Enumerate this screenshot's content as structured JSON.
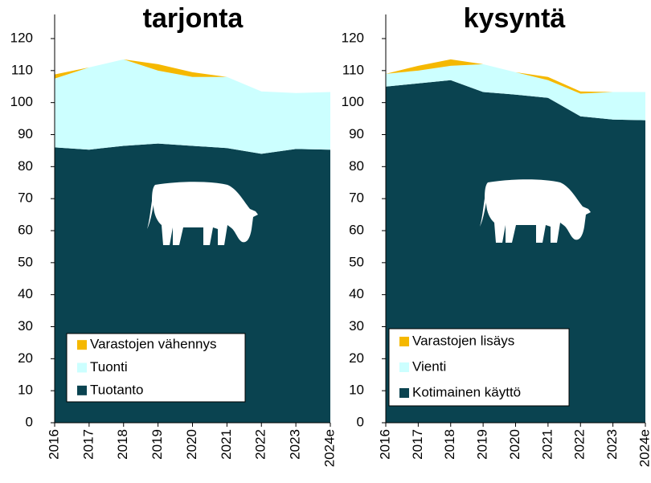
{
  "chart_data": [
    {
      "type": "area",
      "stacked": true,
      "title": "tarjonta",
      "categories": [
        "2016",
        "2017",
        "2018",
        "2019",
        "2020",
        "2021",
        "2022",
        "2023",
        "2024e"
      ],
      "ylim": [
        0,
        120
      ],
      "yticks": [
        0,
        10,
        20,
        30,
        40,
        50,
        60,
        70,
        80,
        90,
        100,
        110,
        120
      ],
      "legend": "lower left",
      "series": [
        {
          "name": "Tuotanto",
          "color": "#0a4350",
          "values": [
            86,
            85.3,
            86.5,
            87.2,
            86.5,
            85.8,
            84,
            85.5,
            85.3
          ]
        },
        {
          "name": "Tuonti",
          "color": "#ccffff",
          "values": [
            21.5,
            25.7,
            27,
            22.8,
            21.5,
            22.2,
            19.5,
            17.5,
            18
          ]
        },
        {
          "name": "Varastojen vähennys",
          "color": "#f5b800",
          "values": [
            1.3,
            0,
            0,
            2,
            1.5,
            0,
            0,
            0,
            0
          ]
        }
      ]
    },
    {
      "type": "area",
      "stacked": true,
      "title": "kysyntä",
      "categories": [
        "2016",
        "2017",
        "2018",
        "2019",
        "2020",
        "2021",
        "2022",
        "2023",
        "2024e"
      ],
      "ylim": [
        0,
        120
      ],
      "yticks": [
        0,
        10,
        20,
        30,
        40,
        50,
        60,
        70,
        80,
        90,
        100,
        110,
        120
      ],
      "legend": "lower left",
      "series": [
        {
          "name": "Kotimainen käyttö",
          "color": "#0a4350",
          "values": [
            105,
            106,
            107,
            103.3,
            102.5,
            101.5,
            95.7,
            94.7,
            94.5
          ]
        },
        {
          "name": "Vienti",
          "color": "#ccffff",
          "values": [
            4,
            4,
            4.5,
            8.7,
            7,
            5.5,
            7.1,
            8.6,
            8.8
          ]
        },
        {
          "name": "Varastojen lisäys",
          "color": "#f5b800",
          "values": [
            0,
            1.5,
            2,
            0,
            0,
            1,
            0.7,
            0,
            0
          ]
        }
      ]
    }
  ]
}
